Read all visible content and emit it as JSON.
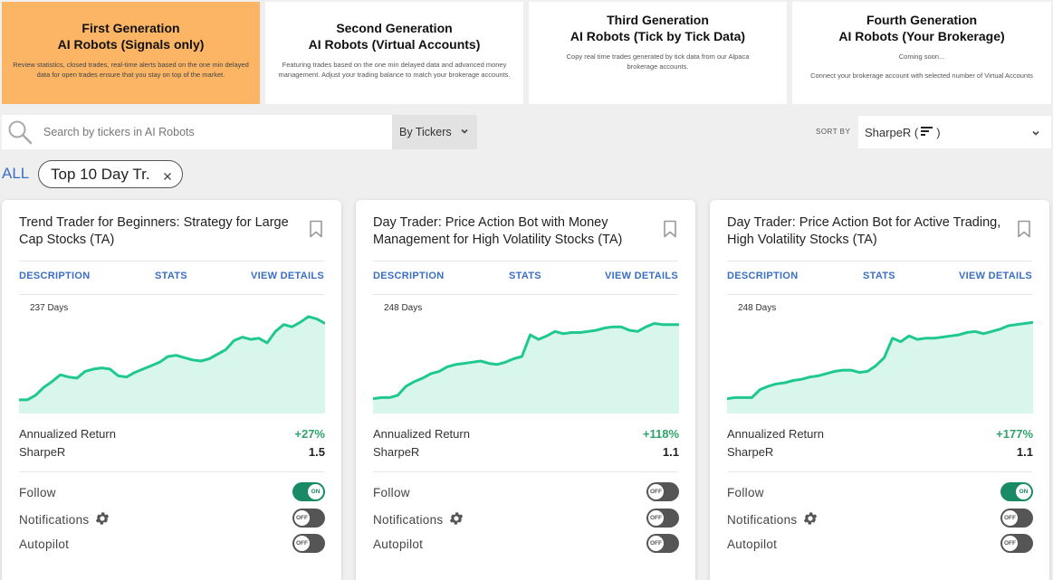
{
  "generations": [
    {
      "title_line1": "First Generation",
      "title_line2": "AI Robots (Signals only)",
      "desc": "Review statistics, closed trades, real-time alerts based on the one min delayed data for open trades ensure that you stay on top of the market.",
      "active": true
    },
    {
      "title_line1": "Second Generation",
      "title_line2": "AI Robots (Virtual Accounts)",
      "desc": "Featuring trades based on the one min delayed data and advanced money management. Adjust your trading balance to match your brokerage accounts.",
      "active": false
    },
    {
      "title_line1": "Third Generation",
      "title_line2": "AI Robots (Tick by Tick Data)",
      "desc": "Copy real time trades generated by tick data from our Alpaca brokerage accounts.",
      "active": false
    },
    {
      "title_line1": "Fourth Generation",
      "title_line2": "AI Robots (Your Brokerage)",
      "desc_line1": "Coming soon...",
      "desc_line2": "Connect your brokerage account with selected number of Virtual Accounts",
      "active": false
    }
  ],
  "search": {
    "placeholder": "Search by tickers in AI Robots",
    "mode": "By Tickers"
  },
  "sort": {
    "label": "SORT BY",
    "value_prefix": "SharpeR (",
    "value_suffix": ")"
  },
  "filter": {
    "all_label": "ALL",
    "chip_label": "Top 10 Day Tr."
  },
  "card_nav": {
    "description": "DESCRIPTION",
    "stats": "STATS",
    "view_details": "VIEW DETAILS"
  },
  "labels": {
    "annualized_return": "Annualized Return",
    "sharper": "SharpeR",
    "follow": "Follow",
    "notifications": "Notifications",
    "autopilot": "Autopilot",
    "on": "ON",
    "off": "OFF"
  },
  "colors": {
    "accent": "#fbb565",
    "link": "#3a6fc4",
    "positive": "#2fa36b",
    "chart_line": "#1fc98e",
    "chart_fill": "#d9f6ec",
    "toggle_on": "#1a8a66"
  },
  "cards": [
    {
      "title": "Trend Trader for Beginners: Strategy for Large Cap Stocks (TA)",
      "days": "237 Days",
      "annualized_return": "+27%",
      "sharper": "1.5",
      "follow": true,
      "notifications": false,
      "autopilot": false,
      "equity": [
        0.12,
        0.12,
        0.16,
        0.23,
        0.28,
        0.34,
        0.32,
        0.31,
        0.37,
        0.39,
        0.4,
        0.39,
        0.33,
        0.32,
        0.36,
        0.39,
        0.42,
        0.45,
        0.5,
        0.51,
        0.49,
        0.47,
        0.46,
        0.48,
        0.52,
        0.56,
        0.64,
        0.67,
        0.65,
        0.66,
        0.62,
        0.72,
        0.78,
        0.76,
        0.8,
        0.85,
        0.83,
        0.79
      ]
    },
    {
      "title": "Day Trader: Price Action Bot with Money Management for High Volatility Stocks (TA)",
      "days": "248 Days",
      "annualized_return": "+118%",
      "sharper": "1.1",
      "follow": false,
      "notifications": false,
      "autopilot": false,
      "equity": [
        0.13,
        0.14,
        0.14,
        0.16,
        0.24,
        0.28,
        0.31,
        0.35,
        0.37,
        0.41,
        0.43,
        0.44,
        0.45,
        0.46,
        0.44,
        0.43,
        0.45,
        0.48,
        0.5,
        0.69,
        0.65,
        0.68,
        0.72,
        0.7,
        0.71,
        0.71,
        0.72,
        0.73,
        0.75,
        0.76,
        0.76,
        0.73,
        0.72,
        0.76,
        0.79,
        0.78,
        0.78,
        0.78
      ]
    },
    {
      "title": "Day Trader: Price Action Bot for Active Trading, High Volatility Stocks (TA)",
      "days": "248 Days",
      "annualized_return": "+177%",
      "sharper": "1.1",
      "follow": true,
      "notifications": false,
      "autopilot": false,
      "equity": [
        0.13,
        0.14,
        0.14,
        0.14,
        0.21,
        0.24,
        0.26,
        0.27,
        0.29,
        0.3,
        0.32,
        0.33,
        0.35,
        0.37,
        0.38,
        0.38,
        0.36,
        0.37,
        0.42,
        0.49,
        0.66,
        0.63,
        0.68,
        0.65,
        0.66,
        0.66,
        0.67,
        0.68,
        0.69,
        0.71,
        0.72,
        0.7,
        0.72,
        0.74,
        0.77,
        0.78,
        0.79,
        0.8
      ]
    }
  ]
}
